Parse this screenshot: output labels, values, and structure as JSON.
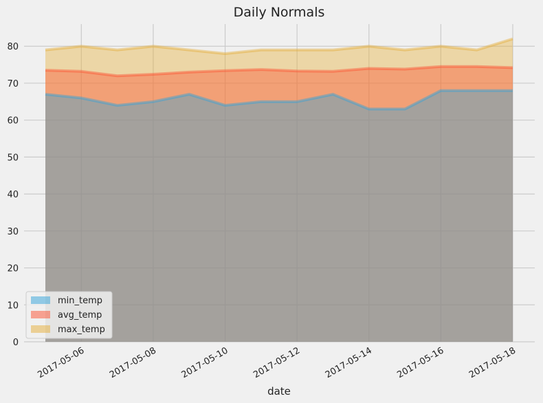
{
  "chart_data": {
    "type": "area",
    "stacked": false,
    "title": "Daily Normals",
    "xlabel": "date",
    "ylabel": "",
    "ylim": [
      0,
      86
    ],
    "yticks": [
      0,
      10,
      20,
      30,
      40,
      50,
      60,
      70,
      80
    ],
    "grid": true,
    "legend_position": "bottom-left",
    "x": [
      "2017-05-05",
      "2017-05-06",
      "2017-05-07",
      "2017-05-08",
      "2017-05-09",
      "2017-05-10",
      "2017-05-11",
      "2017-05-12",
      "2017-05-13",
      "2017-05-14",
      "2017-05-15",
      "2017-05-16",
      "2017-05-17",
      "2017-05-18"
    ],
    "xtick_labels": [
      "2017-05-06",
      "2017-05-08",
      "2017-05-10",
      "2017-05-12",
      "2017-05-14",
      "2017-05-16",
      "2017-05-18"
    ],
    "series": [
      {
        "name": "max_temp",
        "color": "#e5ae38",
        "values": [
          79,
          80,
          79,
          80,
          79,
          78,
          79,
          79,
          79,
          80,
          79,
          80,
          79,
          82
        ]
      },
      {
        "name": "avg_temp",
        "color": "#fc4f30",
        "values": [
          73.5,
          73.2,
          72.0,
          72.4,
          73.0,
          73.4,
          73.7,
          73.3,
          73.2,
          74.0,
          73.8,
          74.5,
          74.5,
          74.2
        ]
      },
      {
        "name": "min_temp",
        "color": "#30a2da",
        "values": [
          67,
          66,
          64,
          65,
          67,
          64,
          65,
          65,
          67,
          63,
          63,
          68,
          68,
          68
        ]
      }
    ],
    "legend_order": [
      "min_temp",
      "avg_temp",
      "max_temp"
    ]
  }
}
